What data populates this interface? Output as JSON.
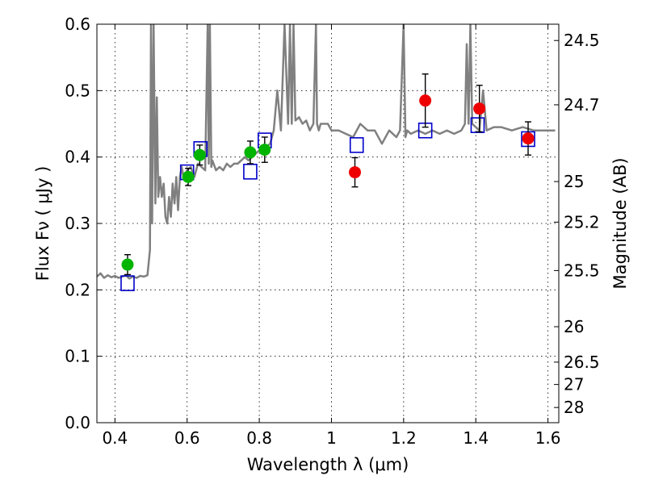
{
  "chart_data": {
    "type": "scatter",
    "xlabel": "Wavelength  λ (μm)",
    "ylabel": "Flux  Fν  ( μJy )",
    "y2label": "Magnitude (AB)",
    "xlim": [
      0.35,
      1.63
    ],
    "ylim": [
      0.0,
      0.6
    ],
    "grid": true,
    "xticks": [
      0.4,
      0.6,
      0.8,
      1.0,
      1.2,
      1.4,
      1.6
    ],
    "xtick_labels": [
      "0.4",
      "0.6",
      "0.8",
      "1",
      "1.2",
      "1.4",
      "1.6"
    ],
    "yticks": [
      0.0,
      0.1,
      0.2,
      0.3,
      0.4,
      0.5,
      0.6
    ],
    "ytick_labels": [
      "0.0",
      "0.1",
      "0.2",
      "0.3",
      "0.4",
      "0.5",
      "0.6"
    ],
    "mag_ticks": [
      24.5,
      24.7,
      25,
      25.2,
      25.5,
      26,
      26.5,
      27,
      28
    ],
    "mag_tick_labels": [
      "24.5",
      "24.7",
      "25",
      "25.2",
      "25.5",
      "26",
      "26.5",
      "27",
      "28"
    ],
    "colors": {
      "spectrum": "#808080",
      "green_points": "#00b400",
      "red_points": "#ee0000",
      "model_squares": "#0000cc",
      "errorbar": "#000000"
    },
    "series": [
      {
        "name": "model spectrum",
        "kind": "line",
        "x": [
          0.35,
          0.36,
          0.37,
          0.38,
          0.39,
          0.4,
          0.41,
          0.42,
          0.43,
          0.44,
          0.45,
          0.46,
          0.47,
          0.48,
          0.49,
          0.497,
          0.5,
          0.503,
          0.507,
          0.512,
          0.516,
          0.52,
          0.525,
          0.53,
          0.535,
          0.54,
          0.545,
          0.55,
          0.555,
          0.56,
          0.565,
          0.57,
          0.575,
          0.58,
          0.585,
          0.59,
          0.6,
          0.61,
          0.62,
          0.63,
          0.64,
          0.65,
          0.657,
          0.66,
          0.663,
          0.667,
          0.67,
          0.68,
          0.69,
          0.7,
          0.71,
          0.72,
          0.73,
          0.74,
          0.75,
          0.76,
          0.77,
          0.78,
          0.79,
          0.8,
          0.81,
          0.82,
          0.83,
          0.84,
          0.85,
          0.86,
          0.87,
          0.88,
          0.885,
          0.89,
          0.895,
          0.9,
          0.91,
          0.92,
          0.93,
          0.94,
          0.95,
          0.957,
          0.96,
          0.965,
          0.97,
          0.98,
          0.99,
          1.0,
          1.02,
          1.04,
          1.06,
          1.08,
          1.1,
          1.12,
          1.14,
          1.16,
          1.18,
          1.19,
          1.2,
          1.205,
          1.21,
          1.22,
          1.24,
          1.26,
          1.28,
          1.3,
          1.32,
          1.34,
          1.36,
          1.37,
          1.375,
          1.38,
          1.385,
          1.39,
          1.4,
          1.41,
          1.42,
          1.43,
          1.45,
          1.47,
          1.5,
          1.53,
          1.56,
          1.59,
          1.62
        ],
        "y": [
          0.22,
          0.225,
          0.218,
          0.222,
          0.219,
          0.221,
          0.218,
          0.22,
          0.222,
          0.217,
          0.22,
          0.218,
          0.221,
          0.22,
          0.222,
          0.26,
          0.6,
          0.3,
          0.6,
          0.33,
          0.49,
          0.34,
          0.37,
          0.34,
          0.36,
          0.31,
          0.3,
          0.34,
          0.31,
          0.36,
          0.33,
          0.37,
          0.32,
          0.37,
          0.385,
          0.37,
          0.38,
          0.385,
          0.37,
          0.39,
          0.385,
          0.38,
          0.6,
          0.39,
          0.6,
          0.385,
          0.395,
          0.38,
          0.385,
          0.38,
          0.39,
          0.385,
          0.39,
          0.39,
          0.395,
          0.4,
          0.395,
          0.4,
          0.405,
          0.41,
          0.415,
          0.415,
          0.42,
          0.44,
          0.5,
          0.44,
          0.6,
          0.45,
          0.6,
          0.45,
          0.6,
          0.455,
          0.46,
          0.45,
          0.455,
          0.44,
          0.45,
          0.6,
          0.45,
          0.44,
          0.45,
          0.45,
          0.45,
          0.44,
          0.44,
          0.435,
          0.43,
          0.45,
          0.44,
          0.44,
          0.42,
          0.44,
          0.43,
          0.44,
          0.6,
          0.43,
          0.44,
          0.435,
          0.44,
          0.435,
          0.44,
          0.435,
          0.44,
          0.435,
          0.44,
          0.45,
          0.57,
          0.45,
          0.6,
          0.45,
          0.445,
          0.44,
          0.5,
          0.44,
          0.445,
          0.445,
          0.44,
          0.445,
          0.44,
          0.44,
          0.44
        ]
      },
      {
        "name": "green photometry",
        "kind": "errorbar",
        "x": [
          0.435,
          0.603,
          0.635,
          0.775,
          0.815
        ],
        "y": [
          0.238,
          0.37,
          0.403,
          0.407,
          0.411
        ],
        "yerr": [
          0.015,
          0.013,
          0.015,
          0.017,
          0.019
        ]
      },
      {
        "name": "red photometry",
        "kind": "errorbar",
        "x": [
          1.065,
          1.26,
          1.41,
          1.545
        ],
        "y": [
          0.377,
          0.485,
          0.473,
          0.428
        ],
        "yerr": [
          0.022,
          0.04,
          0.035,
          0.025
        ]
      },
      {
        "name": "model photometry",
        "kind": "square-markers",
        "x": [
          0.435,
          0.6,
          0.637,
          0.775,
          0.815,
          1.07,
          1.26,
          1.405,
          1.545
        ],
        "y": [
          0.21,
          0.377,
          0.412,
          0.378,
          0.425,
          0.418,
          0.44,
          0.448,
          0.427
        ]
      }
    ]
  }
}
